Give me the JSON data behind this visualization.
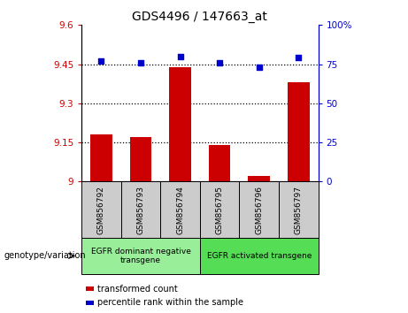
{
  "title": "GDS4496 / 147663_at",
  "samples": [
    "GSM856792",
    "GSM856793",
    "GSM856794",
    "GSM856795",
    "GSM856796",
    "GSM856797"
  ],
  "bar_values": [
    9.18,
    9.17,
    9.44,
    9.14,
    9.02,
    9.38
  ],
  "bar_base": 9.0,
  "percentile_values": [
    77,
    76,
    80,
    76,
    73,
    79
  ],
  "left_ylim": [
    9.0,
    9.6
  ],
  "right_ylim": [
    0,
    100
  ],
  "left_yticks": [
    9.0,
    9.15,
    9.3,
    9.45,
    9.6
  ],
  "right_yticks": [
    0,
    25,
    50,
    75,
    100
  ],
  "left_ytick_labels": [
    "9",
    "9.15",
    "9.3",
    "9.45",
    "9.6"
  ],
  "right_ytick_labels": [
    "0",
    "25",
    "50",
    "75",
    "100%"
  ],
  "bar_color": "#cc0000",
  "dot_color": "#0000cc",
  "dotted_line_vals": [
    9.15,
    9.3,
    9.45
  ],
  "group1_label": "EGFR dominant negative\ntransgene",
  "group2_label": "EGFR activated transgene",
  "group_label_prefix": "genotype/variation",
  "legend_bar_label": "transformed count",
  "legend_dot_label": "percentile rank within the sample",
  "group1_bg": "#99ee99",
  "group2_bg": "#55dd55",
  "tick_label_bg": "#cccccc",
  "fig_width": 4.61,
  "fig_height": 3.54,
  "dpi": 100
}
